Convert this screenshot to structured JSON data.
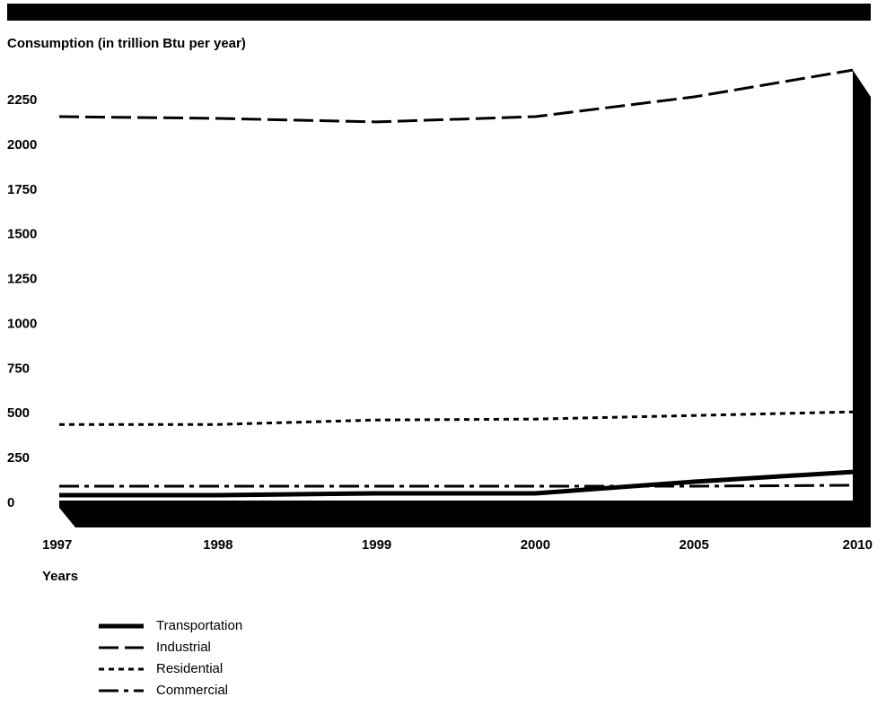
{
  "chart_data": {
    "type": "line",
    "ylabel": "Consumption (in trillion Btu per year)",
    "xlabel": "Years",
    "categories": [
      "1997",
      "1998",
      "1999",
      "2000",
      "2005",
      "2010"
    ],
    "ylim": [
      0,
      2250
    ],
    "yticks": [
      0,
      250,
      500,
      750,
      1000,
      1250,
      1500,
      1750,
      2000,
      2250
    ],
    "series": [
      {
        "name": "Transportation",
        "style": "solid-thick",
        "values": [
          35,
          35,
          45,
          45,
          110,
          165
        ]
      },
      {
        "name": "Industrial",
        "style": "long-dash",
        "values": [
          2150,
          2140,
          2120,
          2150,
          2260,
          2410
        ]
      },
      {
        "name": "Residential",
        "style": "dotted",
        "values": [
          430,
          430,
          455,
          460,
          480,
          500
        ]
      },
      {
        "name": "Commercial",
        "style": "dash-dot",
        "values": [
          85,
          85,
          85,
          85,
          85,
          90
        ]
      }
    ],
    "legend_position": "bottom-left",
    "grid": false
  }
}
